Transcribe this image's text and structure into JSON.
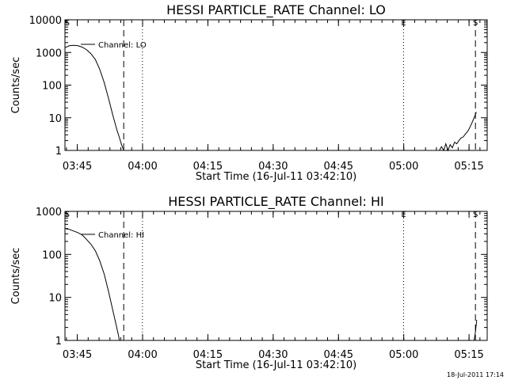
{
  "footer_timestamp": "18-Jul-2011 17:14",
  "chart_data": [
    {
      "type": "line",
      "title": "HESSI PARTICLE_RATE Channel: LO",
      "xlabel": "Start Time (16-Jul-11 03:42:10)",
      "ylabel": "Counts/sec",
      "yscale": "log",
      "ylim": [
        1,
        10000
      ],
      "xlim_minutes": [
        0,
        97
      ],
      "x_ticks": [
        "03:45",
        "04:00",
        "04:15",
        "04:30",
        "04:45",
        "05:00",
        "05:15"
      ],
      "y_ticks": [
        "1",
        "10",
        "100",
        "1000",
        "10000"
      ],
      "legend": "Channel: LO",
      "markers": [
        {
          "label": "S",
          "minute": 0.5,
          "style": "none"
        },
        {
          "label": "",
          "minute": 13.5,
          "style": "dashed"
        },
        {
          "label": "",
          "minute": 17.8,
          "style": "dotted"
        },
        {
          "label": "E",
          "minute": 77.8,
          "style": "dotted"
        },
        {
          "label": "S",
          "minute": 94.3,
          "style": "dashed"
        }
      ],
      "series": [
        {
          "x_minutes": [
            0,
            1,
            2,
            3,
            4,
            5,
            6,
            7,
            8,
            9,
            10,
            11,
            12,
            12.5,
            13,
            13.5
          ],
          "values": [
            1400,
            1600,
            1650,
            1600,
            1450,
            1200,
            900,
            600,
            300,
            120,
            40,
            12,
            4,
            2.5,
            1.5,
            1
          ],
          "post_x_minutes": [
            86,
            86.5,
            87,
            87.5,
            88,
            88.5,
            89,
            89.5,
            90,
            90.5,
            91,
            91.5,
            92,
            92.5,
            93,
            93.5,
            94,
            94.5
          ],
          "post_values": [
            1,
            1.3,
            1,
            1.6,
            1,
            1.5,
            1.2,
            1.8,
            1.6,
            2,
            2.4,
            2.6,
            3.2,
            3.8,
            5,
            7,
            10,
            15
          ]
        }
      ]
    },
    {
      "type": "line",
      "title": "HESSI PARTICLE_RATE Channel: HI",
      "xlabel": "Start Time (16-Jul-11 03:42:10)",
      "ylabel": "Counts/sec",
      "yscale": "log",
      "ylim": [
        1,
        1000
      ],
      "xlim_minutes": [
        0,
        97
      ],
      "x_ticks": [
        "03:45",
        "04:00",
        "04:15",
        "04:30",
        "04:45",
        "05:00",
        "05:15"
      ],
      "y_ticks": [
        "1",
        "10",
        "100",
        "1000"
      ],
      "legend": "Channel: HI",
      "markers": [
        {
          "label": "S",
          "minute": 0.5,
          "style": "none"
        },
        {
          "label": "",
          "minute": 13.5,
          "style": "dashed"
        },
        {
          "label": "",
          "minute": 17.8,
          "style": "dotted"
        },
        {
          "label": "E",
          "minute": 77.8,
          "style": "dotted"
        },
        {
          "label": "S",
          "minute": 94.3,
          "style": "dashed"
        }
      ],
      "series": [
        {
          "x_minutes": [
            0,
            1,
            2,
            3,
            4,
            5,
            6,
            7,
            8,
            9,
            10,
            11,
            11.5,
            12,
            12.3,
            12.5
          ],
          "values": [
            400,
            380,
            350,
            320,
            280,
            220,
            170,
            120,
            70,
            35,
            14,
            5,
            3,
            1.8,
            1.3,
            1
          ],
          "post_x_minutes": [
            94,
            94.3,
            94.6
          ],
          "post_values": [
            1,
            1.6,
            3
          ]
        }
      ]
    }
  ]
}
